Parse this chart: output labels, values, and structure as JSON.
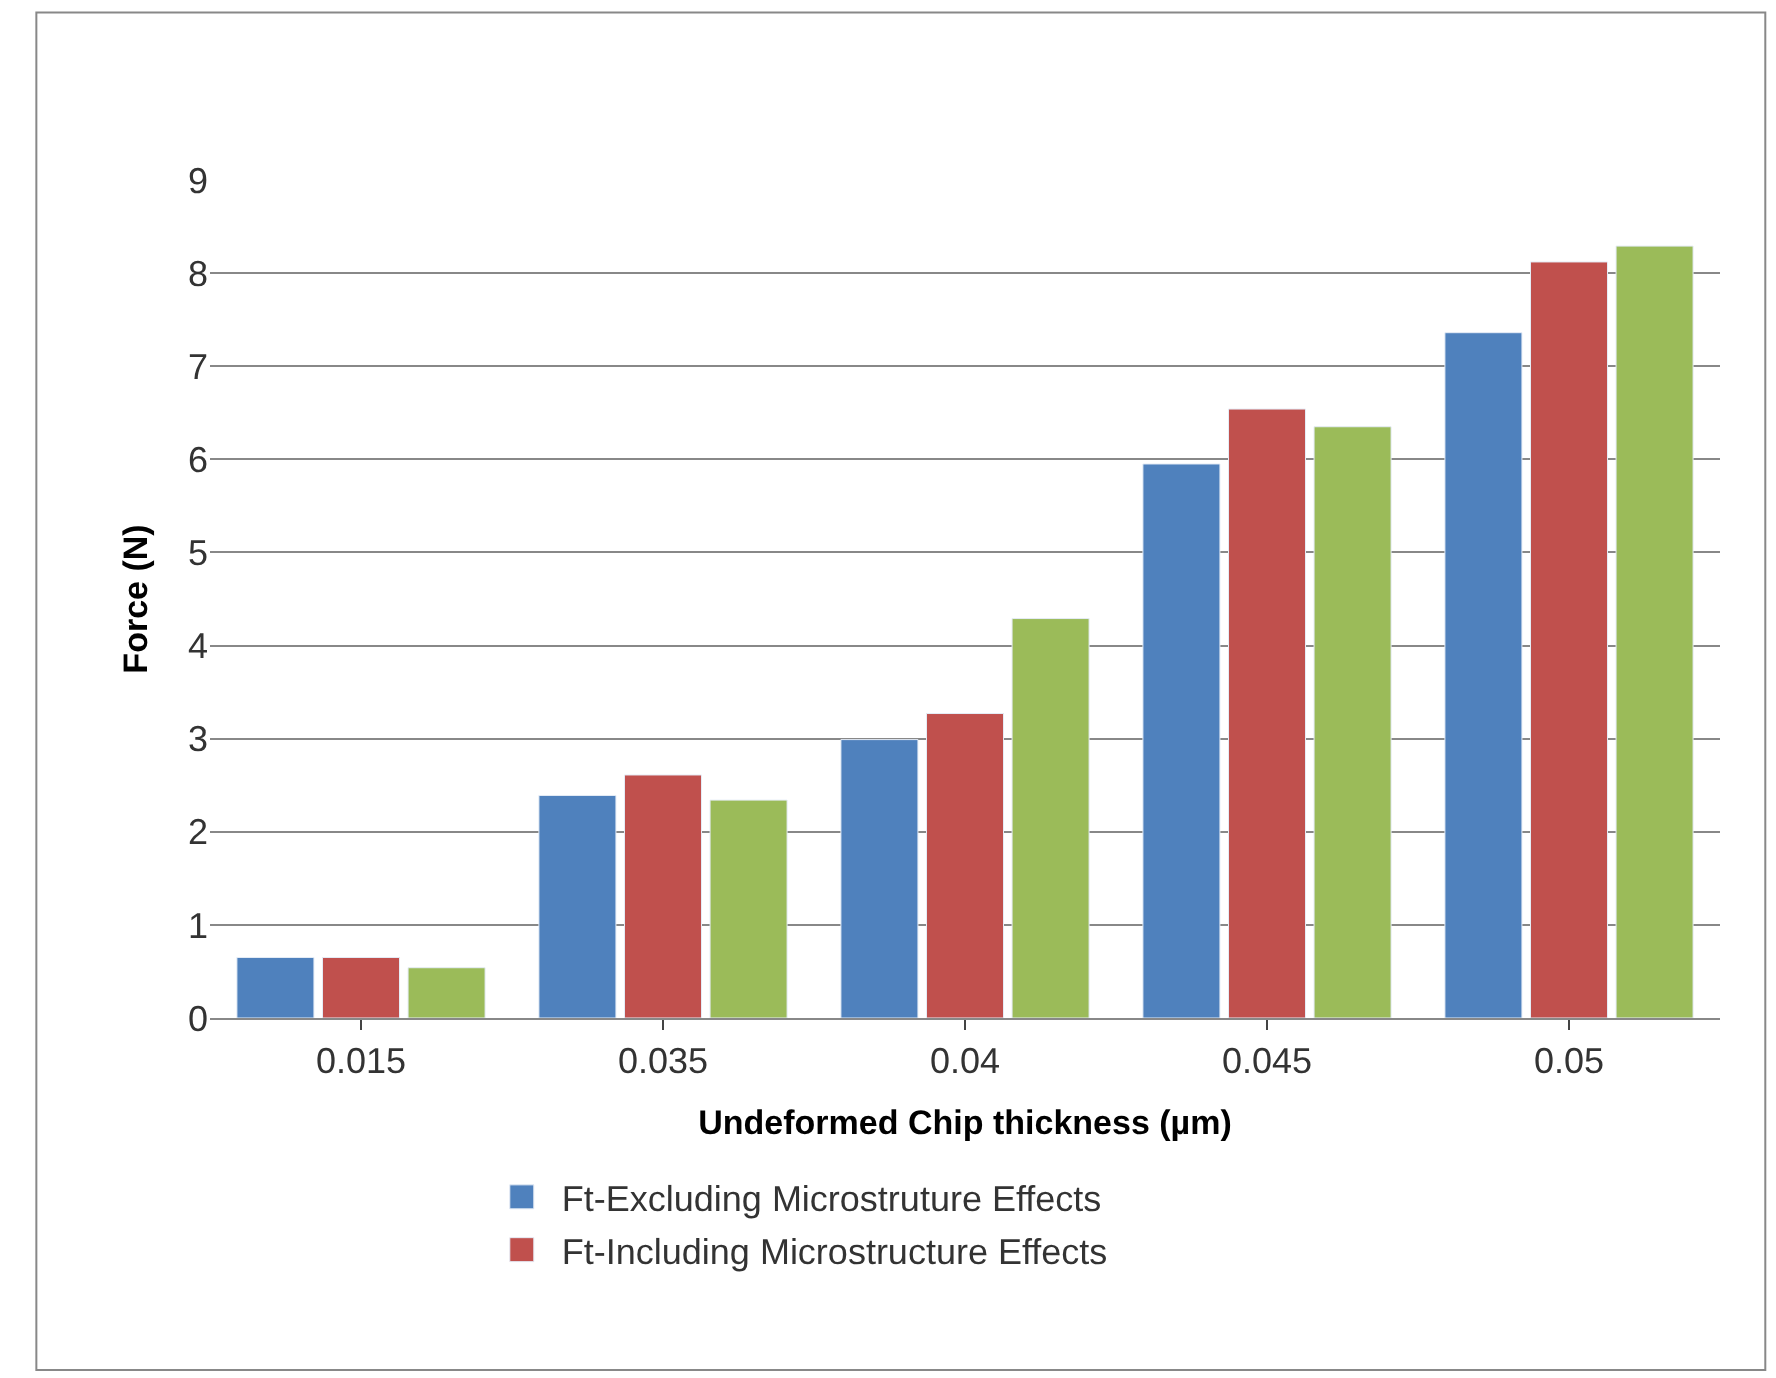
{
  "chart_data": {
    "type": "bar",
    "xlabel": "Undeformed Chip thickness (µm)",
    "ylabel": "Force (N)",
    "categories": [
      "0.015",
      "0.035",
      "0.04",
      "0.045",
      "0.05"
    ],
    "series": [
      {
        "name": "Ft-Excluding Microstruture Effects",
        "color": "#4f81bd",
        "values": [
          0.65,
          2.39,
          2.99,
          5.95,
          7.36
        ]
      },
      {
        "name": "Ft-Including Microstructure Effects",
        "color": "#c0504d",
        "values": [
          0.65,
          2.61,
          3.27,
          6.54,
          8.12
        ]
      },
      {
        "color": "#9bbb59",
        "values": [
          0.54,
          2.34,
          4.29,
          6.35,
          8.29
        ]
      }
    ],
    "ylim": [
      0,
      9
    ],
    "yticks": [
      0,
      1,
      2,
      3,
      4,
      5,
      6,
      7,
      8,
      9
    ],
    "grid": "y",
    "legend": "bottom"
  }
}
